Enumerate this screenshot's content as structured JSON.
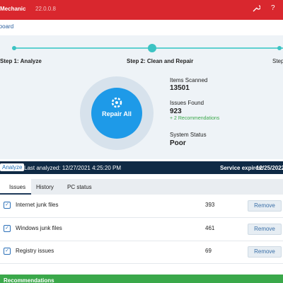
{
  "header": {
    "app": "Mechanic",
    "version": "22.0.0.8",
    "help": "?"
  },
  "nav": {
    "current": "Dashboard"
  },
  "steps": [
    "Step 1: Analyze",
    "Step 2: Clean and Repair",
    "Step"
  ],
  "action": {
    "button": "Repair All"
  },
  "stats": {
    "scanned_label": "Items Scanned",
    "scanned": "13501",
    "issues_label": "Issues Found",
    "issues": "923",
    "recommendations": "+ 2 Recommendations",
    "status_label": "System Status",
    "status": "Poor"
  },
  "status_bar": {
    "analyze": "Analyze",
    "last": "Last analyzed: 12/27/2021 4:25:20 PM",
    "expires_label": "Service expires:",
    "expires": "12/25/2022"
  },
  "tabs": [
    "Issues",
    "History",
    "PC status"
  ],
  "issues": {
    "button": "Remove",
    "rows": [
      [
        "Internet junk files",
        "393"
      ],
      [
        "Windows junk files",
        "461"
      ],
      [
        "Registry issues",
        "69"
      ]
    ]
  },
  "section": {
    "title": "Recommendations"
  }
}
